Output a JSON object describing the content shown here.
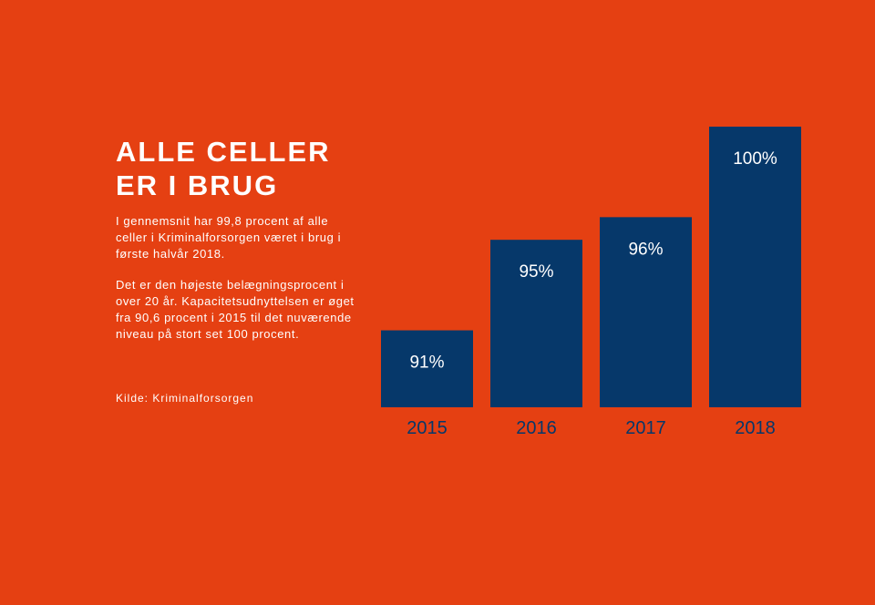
{
  "title": {
    "line1": "ALLE CELLER",
    "line2": "ER I BRUG"
  },
  "body": {
    "paragraph1": "I gennemsnit har 99,8 procent af alle celler i Kriminalforsorgen været i brug i første halvår 2018.",
    "paragraph2": "Det er den højeste belægningsprocent i over 20 år. Kapacitetsudnyttelsen er øget fra 90,6 procent i 2015 til det nuværende niveau på stort set 100 procent.",
    "source": "Kilde: Kriminalforsorgen"
  },
  "colors": {
    "background": "#E54012",
    "bar": "#06386A",
    "text": "#FFFFFF"
  },
  "chart_data": {
    "type": "bar",
    "categories": [
      "2015",
      "2016",
      "2017",
      "2018"
    ],
    "values": [
      91,
      95,
      96,
      100
    ],
    "value_labels": [
      "91%",
      "95%",
      "96%",
      "100%"
    ],
    "title": "",
    "xlabel": "",
    "ylabel": "",
    "grid": false,
    "legend": "none"
  }
}
